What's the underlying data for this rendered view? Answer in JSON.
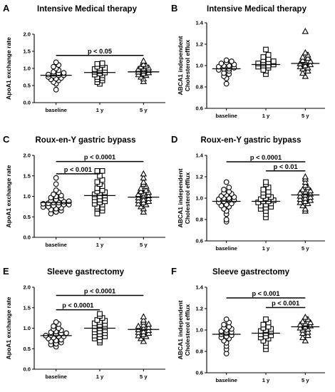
{
  "chart_data": [
    {
      "panel": "A",
      "type": "scatter",
      "title": "Intensive Medical therapy",
      "ylabel": [
        "ApoA1 exchange rate"
      ],
      "ylim": [
        0,
        2.0
      ],
      "yticks": [
        0.0,
        0.5,
        1.0,
        1.5,
        2.0
      ],
      "ytick_labels": [
        "0.0",
        "0.5",
        "1.0",
        "1.5",
        "2.0"
      ],
      "categories": [
        "baseline",
        "1 y",
        "5 y"
      ],
      "series": [
        {
          "name": "baseline",
          "marker": "circle",
          "values": [
            0.38,
            0.55,
            0.6,
            0.65,
            0.68,
            0.7,
            0.72,
            0.75,
            0.78,
            0.8,
            0.8,
            0.82,
            0.84,
            0.85,
            0.87,
            0.9,
            0.95,
            1.0,
            1.05,
            1.1,
            1.18
          ],
          "mean": 0.8
        },
        {
          "name": "1 y",
          "marker": "square",
          "values": [
            0.55,
            0.6,
            0.65,
            0.68,
            0.72,
            0.75,
            0.8,
            0.82,
            0.85,
            0.88,
            0.9,
            0.92,
            0.95,
            0.98,
            1.0,
            1.02,
            1.05,
            1.1,
            1.13,
            1.15
          ],
          "mean": 0.88
        },
        {
          "name": "5 y",
          "marker": "triangle",
          "values": [
            0.62,
            0.7,
            0.75,
            0.8,
            0.82,
            0.85,
            0.88,
            0.9,
            0.92,
            0.95,
            0.98,
            1.0,
            1.02,
            1.05,
            1.08,
            1.12,
            1.22
          ],
          "mean": 0.9
        }
      ],
      "significance": [
        {
          "text": "p < 0.05",
          "from": "baseline",
          "to": "5 y",
          "y": 1.38
        }
      ]
    },
    {
      "panel": "B",
      "type": "scatter",
      "title": "Intensive Medical therapy",
      "ylabel": [
        "ABCA1 independent",
        "Cholesterol efflux"
      ],
      "ylim": [
        0.6,
        1.4
      ],
      "yticks": [
        0.6,
        0.8,
        1.0,
        1.2,
        1.4
      ],
      "ytick_labels": [
        "0.6",
        "0.8",
        "1.0",
        "1.2",
        "1.4"
      ],
      "categories": [
        "baseline",
        "1 y",
        "5 y"
      ],
      "series": [
        {
          "name": "baseline",
          "marker": "circle",
          "values": [
            0.83,
            0.88,
            0.9,
            0.92,
            0.93,
            0.95,
            0.96,
            0.97,
            0.97,
            0.98,
            0.99,
            1.0,
            1.0,
            1.01,
            1.02,
            1.03,
            1.04,
            1.05
          ],
          "mean": 0.97
        },
        {
          "name": "1 y",
          "marker": "square",
          "values": [
            0.92,
            0.95,
            0.96,
            0.98,
            0.99,
            1.0,
            1.0,
            1.01,
            1.02,
            1.02,
            1.03,
            1.04,
            1.05,
            1.06,
            1.08,
            1.1,
            1.15
          ],
          "mean": 1.01
        },
        {
          "name": "5 y",
          "marker": "triangle",
          "values": [
            0.9,
            0.93,
            0.95,
            0.97,
            0.98,
            0.99,
            1.0,
            1.01,
            1.02,
            1.03,
            1.04,
            1.05,
            1.07,
            1.08,
            1.1,
            1.12,
            1.32
          ],
          "mean": 1.02
        }
      ],
      "significance": []
    },
    {
      "panel": "C",
      "type": "scatter",
      "title": "Roux-en-Y gastric bypass",
      "ylabel": [
        "ApoA1 exchange rate"
      ],
      "ylim": [
        0,
        2.0
      ],
      "yticks": [
        0.0,
        0.5,
        1.0,
        1.5,
        2.0
      ],
      "ytick_labels": [
        "0.0",
        "0.5",
        "1.0",
        "1.5",
        "2.0"
      ],
      "categories": [
        "baseline",
        "1 y",
        "5 y"
      ],
      "series": [
        {
          "name": "baseline",
          "marker": "circle",
          "values": [
            0.58,
            0.62,
            0.65,
            0.68,
            0.7,
            0.72,
            0.74,
            0.75,
            0.77,
            0.78,
            0.8,
            0.8,
            0.82,
            0.83,
            0.85,
            0.85,
            0.87,
            0.88,
            0.9,
            0.92,
            0.95,
            0.97,
            1.0,
            1.02,
            1.05,
            1.1,
            1.15,
            1.3,
            1.45
          ],
          "mean": 0.85
        },
        {
          "name": "1 y",
          "marker": "square",
          "values": [
            0.58,
            0.65,
            0.7,
            0.72,
            0.75,
            0.8,
            0.82,
            0.85,
            0.88,
            0.9,
            0.92,
            0.95,
            0.98,
            1.0,
            1.02,
            1.05,
            1.08,
            1.1,
            1.12,
            1.15,
            1.2,
            1.25,
            1.3,
            1.35,
            1.4,
            1.5,
            1.62,
            1.62
          ],
          "mean": 1.02
        },
        {
          "name": "5 y",
          "marker": "triangle",
          "values": [
            0.62,
            0.7,
            0.75,
            0.8,
            0.82,
            0.85,
            0.88,
            0.9,
            0.92,
            0.95,
            0.97,
            1.0,
            1.02,
            1.05,
            1.08,
            1.1,
            1.12,
            1.15,
            1.2,
            1.25,
            1.3,
            1.35,
            1.45,
            1.55
          ],
          "mean": 0.98
        }
      ],
      "significance": [
        {
          "text": "p < 0.001",
          "from": "baseline",
          "to": "1 y",
          "y": 1.55
        },
        {
          "text": "p < 0.0001",
          "from": "baseline",
          "to": "5 y",
          "y": 1.85
        }
      ]
    },
    {
      "panel": "D",
      "type": "scatter",
      "title": "Roux-en-Y gastric bypass",
      "ylabel": [
        "ABCA1 independent",
        "Cholesterol efflux"
      ],
      "ylim": [
        0.6,
        1.4
      ],
      "yticks": [
        0.6,
        0.8,
        1.0,
        1.2,
        1.4
      ],
      "ytick_labels": [
        "0.6",
        "0.8",
        "1.0",
        "1.2",
        "1.4"
      ],
      "categories": [
        "baseline",
        "1 y",
        "5 y"
      ],
      "series": [
        {
          "name": "baseline",
          "marker": "circle",
          "values": [
            0.78,
            0.8,
            0.85,
            0.88,
            0.9,
            0.92,
            0.93,
            0.94,
            0.95,
            0.96,
            0.97,
            0.98,
            0.98,
            0.99,
            1.0,
            1.0,
            1.01,
            1.02,
            1.03,
            1.04,
            1.05,
            1.06,
            1.08,
            1.1,
            1.15
          ],
          "mean": 0.97
        },
        {
          "name": "1 y",
          "marker": "square",
          "values": [
            0.82,
            0.85,
            0.88,
            0.9,
            0.91,
            0.92,
            0.93,
            0.94,
            0.95,
            0.96,
            0.97,
            0.97,
            0.98,
            0.99,
            1.0,
            1.01,
            1.02,
            1.03,
            1.05,
            1.06,
            1.08,
            1.1,
            1.13,
            1.15
          ],
          "mean": 0.97
        },
        {
          "name": "5 y",
          "marker": "triangle",
          "values": [
            0.88,
            0.9,
            0.93,
            0.95,
            0.96,
            0.97,
            0.98,
            0.99,
            1.0,
            1.01,
            1.02,
            1.03,
            1.04,
            1.05,
            1.06,
            1.07,
            1.08,
            1.1,
            1.12,
            1.15,
            1.18,
            1.2
          ],
          "mean": 1.03
        }
      ],
      "significance": [
        {
          "text": "p < 0.01",
          "from": "1 y",
          "to": "5 y",
          "y": 1.255
        },
        {
          "text": "p < 0.0001",
          "from": "baseline",
          "to": "5 y",
          "y": 1.34
        }
      ]
    },
    {
      "panel": "E",
      "type": "scatter",
      "title": "Sleeve gastrectomy",
      "ylabel": [
        "ApoA1 exchange rate"
      ],
      "ylim": [
        0,
        2.0
      ],
      "yticks": [
        0.0,
        0.5,
        1.0,
        1.5,
        2.0
      ],
      "ytick_labels": [
        "0.0",
        "0.5",
        "1.0",
        "1.5",
        "2.0"
      ],
      "categories": [
        "baseline",
        "1 y",
        "5 y"
      ],
      "series": [
        {
          "name": "baseline",
          "marker": "circle",
          "values": [
            0.55,
            0.6,
            0.62,
            0.65,
            0.68,
            0.7,
            0.72,
            0.75,
            0.77,
            0.8,
            0.8,
            0.82,
            0.83,
            0.85,
            0.87,
            0.88,
            0.9,
            0.92,
            0.95,
            0.98,
            1.0,
            1.05,
            1.1,
            1.15
          ],
          "mean": 0.82
        },
        {
          "name": "1 y",
          "marker": "square",
          "values": [
            0.65,
            0.7,
            0.75,
            0.78,
            0.8,
            0.82,
            0.85,
            0.88,
            0.9,
            0.92,
            0.95,
            0.97,
            1.0,
            1.02,
            1.05,
            1.08,
            1.1,
            1.12,
            1.15,
            1.18,
            1.2,
            1.25,
            1.3,
            1.35
          ],
          "mean": 1.0
        },
        {
          "name": "5 y",
          "marker": "triangle",
          "values": [
            0.68,
            0.75,
            0.8,
            0.82,
            0.85,
            0.88,
            0.9,
            0.92,
            0.95,
            0.97,
            1.0,
            1.02,
            1.05,
            1.08,
            1.1,
            1.15,
            1.2,
            1.28
          ],
          "mean": 0.97
        }
      ],
      "significance": [
        {
          "text": "p < 0.0001",
          "from": "baseline",
          "to": "1 y",
          "y": 1.45
        },
        {
          "text": "p < 0.0001",
          "from": "baseline",
          "to": "5 y",
          "y": 1.8
        }
      ]
    },
    {
      "panel": "F",
      "type": "scatter",
      "title": "Sleeve gastrectomy",
      "ylabel": [
        "ABCA1 independent",
        "Cholesterol efflux"
      ],
      "ylim": [
        0.6,
        1.4
      ],
      "yticks": [
        0.6,
        0.8,
        1.0,
        1.2,
        1.4
      ],
      "ytick_labels": [
        "0.6",
        "0.8",
        "1.0",
        "1.2",
        "1.4"
      ],
      "categories": [
        "baseline",
        "1 y",
        "5 y"
      ],
      "series": [
        {
          "name": "baseline",
          "marker": "circle",
          "values": [
            0.78,
            0.82,
            0.85,
            0.88,
            0.9,
            0.92,
            0.93,
            0.94,
            0.95,
            0.96,
            0.97,
            0.98,
            0.99,
            1.0,
            1.01,
            1.02,
            1.03,
            1.05,
            1.07,
            1.1
          ],
          "mean": 0.96
        },
        {
          "name": "1 y",
          "marker": "square",
          "values": [
            0.82,
            0.85,
            0.88,
            0.9,
            0.92,
            0.93,
            0.94,
            0.95,
            0.96,
            0.97,
            0.98,
            0.99,
            1.0,
            1.01,
            1.02,
            1.03,
            1.05,
            1.07,
            1.1
          ],
          "mean": 0.97
        },
        {
          "name": "5 y",
          "marker": "triangle",
          "values": [
            0.9,
            0.93,
            0.95,
            0.97,
            0.98,
            1.0,
            1.01,
            1.02,
            1.03,
            1.04,
            1.05,
            1.06,
            1.07,
            1.08,
            1.1,
            1.12
          ],
          "mean": 1.03
        }
      ],
      "significance": [
        {
          "text": "p < 0.001",
          "from": "1 y",
          "to": "5 y",
          "y": 1.21
        },
        {
          "text": "p < 0.001",
          "from": "baseline",
          "to": "5 y",
          "y": 1.3
        }
      ]
    }
  ]
}
